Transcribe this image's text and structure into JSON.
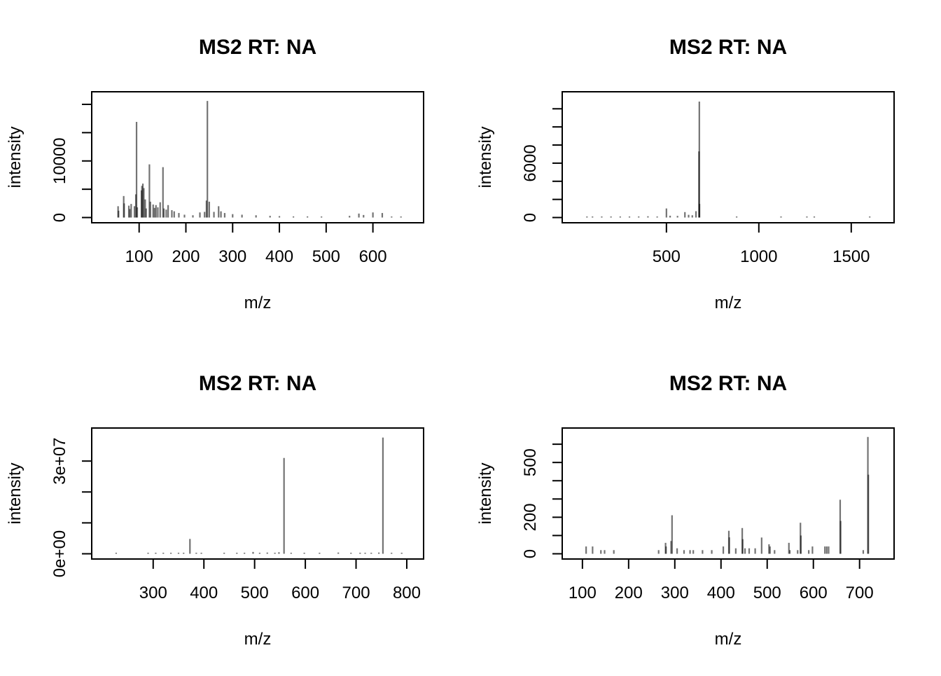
{
  "chart_data": [
    {
      "type": "bar",
      "title": "MS2 RT: NA",
      "xlabel": "m/z",
      "ylabel": "intensity",
      "xlim": [
        27,
        680
      ],
      "ylim": [
        0,
        21300
      ],
      "xticks": [
        100,
        200,
        300,
        400,
        500,
        600
      ],
      "xtick_labels": [
        "100",
        "200",
        "300",
        "400",
        "500",
        "600"
      ],
      "yticks": [
        0,
        5000,
        10000,
        15000,
        20000
      ],
      "ytick_labels": [
        "0",
        "",
        "10000",
        "",
        ""
      ],
      "peaks": {
        "mz": [
          55,
          56,
          67,
          68,
          78,
          80,
          83,
          90,
          93,
          94.5,
          96,
          105,
          106,
          108,
          110,
          113,
          115,
          122,
          124,
          130,
          133,
          136,
          140,
          145,
          151,
          153,
          158,
          162,
          170,
          175,
          185,
          197,
          215,
          230,
          240,
          244,
          246,
          250,
          260,
          270,
          275,
          283,
          300,
          320,
          350,
          380,
          400,
          430,
          460,
          490,
          550,
          570,
          580,
          600,
          620,
          640,
          660
        ],
        "intensity": [
          2000,
          1200,
          3800,
          2500,
          2100,
          1500,
          2400,
          2000,
          4100,
          16900,
          1800,
          4800,
          5600,
          6000,
          5200,
          3200,
          1600,
          9400,
          2800,
          2300,
          1700,
          2200,
          1800,
          2700,
          8900,
          1600,
          1400,
          2200,
          1300,
          1100,
          800,
          500,
          400,
          900,
          1000,
          3000,
          20600,
          2800,
          1000,
          2000,
          1100,
          800,
          600,
          500,
          400,
          300,
          250,
          200,
          200,
          150,
          300,
          700,
          450,
          900,
          800,
          150,
          100
        ]
      }
    },
    {
      "type": "bar",
      "title": "MS2 RT: NA",
      "xlabel": "m/z",
      "ylabel": "intensity",
      "xlim": [
        8,
        1660
      ],
      "ylim": [
        0,
        13300
      ],
      "xticks": [
        500,
        1000,
        1500
      ],
      "xtick_labels": [
        "500",
        "1000",
        "1500"
      ],
      "yticks": [
        0,
        2000,
        4000,
        6000,
        8000,
        10000,
        12000
      ],
      "ytick_labels": [
        "0",
        "",
        "",
        "6000",
        "",
        "",
        ""
      ],
      "peaks": {
        "mz": [
          70,
          100,
          150,
          200,
          250,
          300,
          350,
          400,
          450,
          500,
          520,
          560,
          600,
          620,
          640,
          660,
          676,
          678,
          679,
          880,
          1120,
          1260,
          1300,
          1600
        ],
        "intensity": [
          60,
          80,
          70,
          90,
          80,
          100,
          120,
          140,
          110,
          1000,
          200,
          180,
          600,
          300,
          250,
          700,
          7300,
          12800,
          1500,
          40,
          40,
          40,
          40,
          40
        ]
      }
    },
    {
      "type": "bar",
      "title": "MS2 RT: NA",
      "xlabel": "m/z",
      "ylabel": "intensity",
      "xlim": [
        205,
        807
      ],
      "ylim": [
        0,
        39000000.0
      ],
      "xticks": [
        300,
        400,
        500,
        600,
        700,
        800
      ],
      "xtick_labels": [
        "300",
        "400",
        "500",
        "600",
        "700",
        "800"
      ],
      "yticks": [
        0,
        10000000.0,
        20000000.0,
        30000000.0
      ],
      "ytick_labels": [
        "0e+00",
        "",
        "",
        "3e+07"
      ],
      "peaks": {
        "mz": [
          227,
          290,
          305,
          320,
          335,
          350,
          360,
          372.5,
          385,
          395,
          440,
          465,
          480,
          497,
          510,
          525,
          540,
          548,
          558,
          572,
          598,
          628,
          665,
          690,
          708,
          718,
          730,
          745,
          753,
          770,
          790
        ],
        "intensity": [
          100000,
          150000,
          120000,
          150000,
          130000,
          200000,
          300000,
          4800000,
          200000,
          150000,
          150000,
          120000,
          150000,
          600000,
          200000,
          400000,
          300000,
          500000,
          31000000,
          300000,
          150000,
          200000,
          400000,
          200000,
          300000,
          250000,
          300000,
          400000,
          37600000,
          200000,
          150000
        ]
      }
    },
    {
      "type": "bar",
      "title": "MS2 RT: NA",
      "xlabel": "m/z",
      "ylabel": "intensity",
      "xlim": [
        85,
        746
      ],
      "ylim": [
        0,
        660
      ],
      "xticks": [
        100,
        200,
        300,
        400,
        500,
        600,
        700
      ],
      "xtick_labels": [
        "100",
        "200",
        "300",
        "400",
        "500",
        "600",
        "700"
      ],
      "yticks": [
        0,
        100,
        200,
        300,
        400,
        500,
        600
      ],
      "ytick_labels": [
        "0",
        "",
        "200",
        "",
        "",
        "500",
        ""
      ],
      "peaks": {
        "mz": [
          108,
          122,
          140,
          148,
          168,
          265,
          280,
          281,
          292,
          294,
          305,
          320,
          333,
          340,
          360,
          380,
          405,
          417,
          418,
          432,
          446,
          447,
          452,
          461,
          474,
          488,
          504,
          506,
          516,
          547,
          549,
          566,
          572,
          573,
          590,
          598,
          625,
          629,
          633,
          658,
          659,
          708,
          718,
          719
        ],
        "intensity": [
          40,
          40,
          20,
          20,
          20,
          20,
          60,
          40,
          70,
          211,
          30,
          20,
          20,
          20,
          20,
          20,
          40,
          126,
          90,
          30,
          141,
          80,
          30,
          30,
          30,
          89,
          52,
          40,
          20,
          60,
          20,
          20,
          170,
          100,
          20,
          40,
          40,
          40,
          40,
          296,
          180,
          20,
          640,
          433
        ]
      }
    }
  ]
}
